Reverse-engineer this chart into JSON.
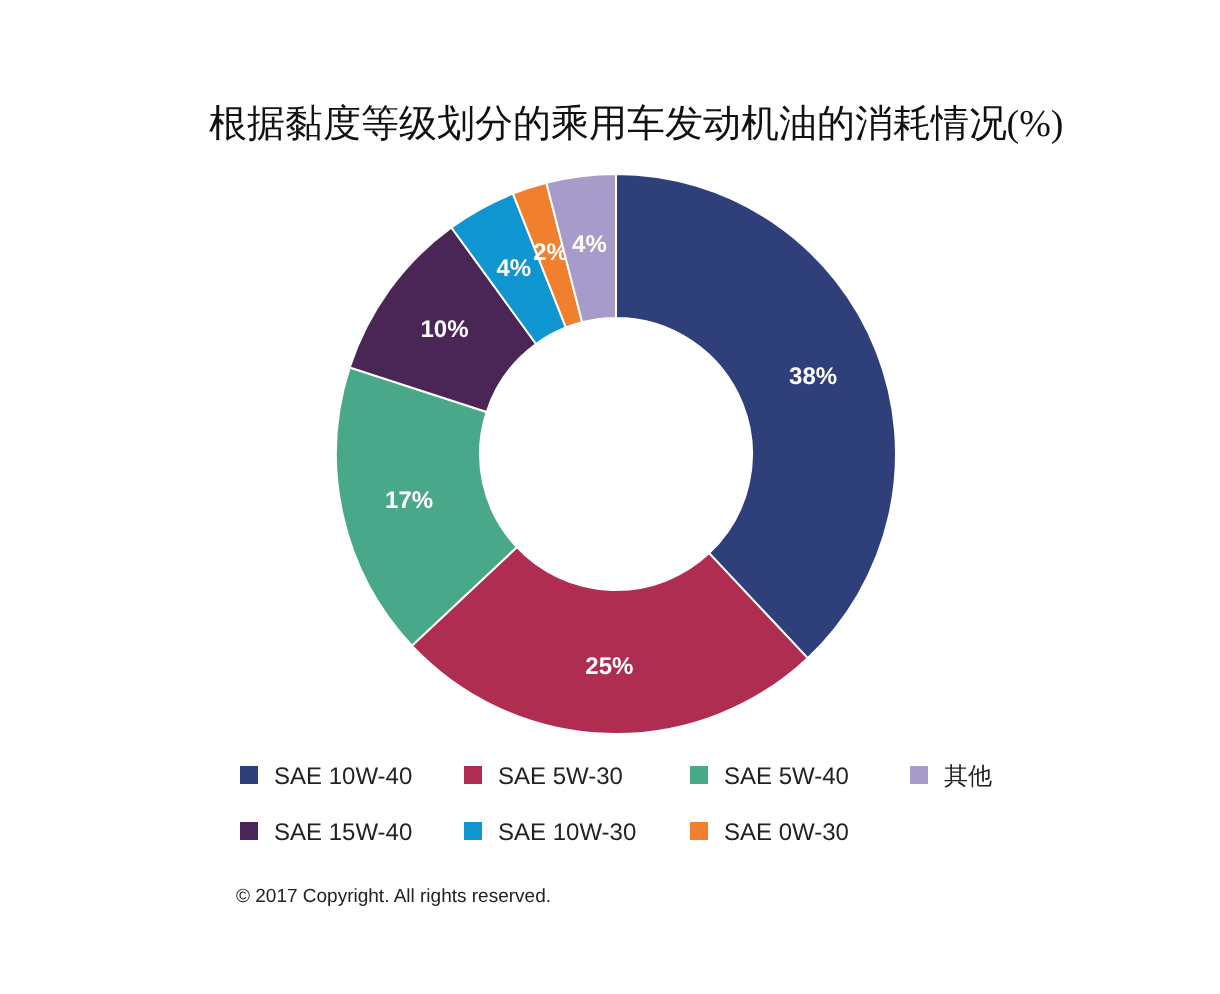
{
  "chart_data": {
    "type": "donut",
    "title": "根据黏度等级划分的乘用车发动机油的消耗情况(%)",
    "categories": [
      "SAE 10W-40",
      "SAE 5W-30",
      "SAE 5W-40",
      "SAE 15W-40",
      "SAE 10W-30",
      "SAE 0W-30",
      "其他"
    ],
    "values": [
      38,
      25,
      17,
      10,
      4,
      2,
      4
    ],
    "colors": [
      "#2e3f7a",
      "#b02d52",
      "#4aa88a",
      "#4a2657",
      "#0f95d0",
      "#f07f2e",
      "#a69bc9"
    ],
    "value_labels": [
      "38%",
      "25%",
      "17%",
      "10%",
      "4%",
      "2%",
      "4%"
    ],
    "legend": "bottom",
    "annotations": [
      "© 2017 Copyright. All rights reserved."
    ]
  }
}
